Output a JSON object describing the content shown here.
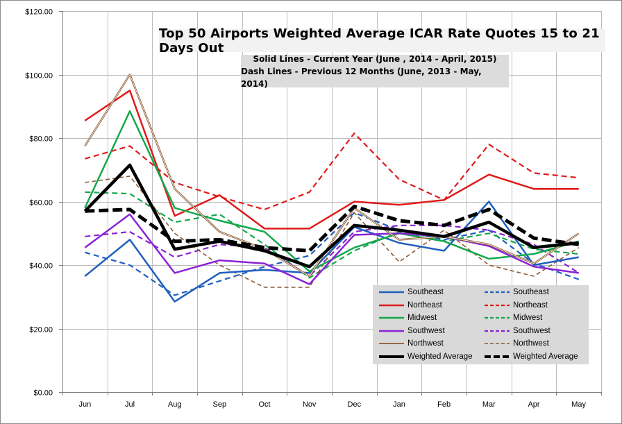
{
  "chart_data": {
    "type": "line",
    "title": "Top 50 Airports  Weighted Average  ICAR Rate Quotes  15 to 21 Days Out",
    "subtitle_lines": [
      "Solid Lines - Current Year (June , 2014  - April, 2015)",
      "Dash Lines - Previous 12 Months (June, 2013  - May, 2014)"
    ],
    "categories": [
      "Jun",
      "Jul",
      "Aug",
      "Sep",
      "Oct",
      "Nov",
      "Dec",
      "Jan",
      "Feb",
      "Mar",
      "Apr",
      "May"
    ],
    "y_ticks": [
      "$0.00",
      "$20.00",
      "$40.00",
      "$60.00",
      "$80.00",
      "$100.00",
      "$120.00"
    ],
    "ylim": [
      0,
      120
    ],
    "y_major_unit": 20,
    "grid": "horizontal major gridlines and vertical category gridlines",
    "legend_position": "bottom-right",
    "series": [
      {
        "name": "Southeast",
        "style": "solid",
        "color": "#1f5fbf",
        "values": [
          36.5,
          48,
          28.5,
          37.5,
          38.5,
          37.5,
          52,
          47,
          44.5,
          60,
          40,
          42.5
        ]
      },
      {
        "name": "Southeast",
        "style": "dashed",
        "color": "#1f5fbf",
        "values": [
          44,
          40,
          30.5,
          35,
          39.5,
          43,
          56.5,
          51,
          48,
          51,
          40.5,
          35.5
        ]
      },
      {
        "name": "Northeast",
        "style": "solid",
        "color": "#e01a1a",
        "values": [
          85.5,
          95,
          55.5,
          62,
          51.5,
          51.5,
          60,
          59,
          60.5,
          68.5,
          64,
          64
        ]
      },
      {
        "name": "Northeast",
        "style": "dashed",
        "color": "#e01a1a",
        "values": [
          73.5,
          77.5,
          66,
          61.5,
          57.5,
          63,
          81.5,
          67,
          60.5,
          78,
          69,
          67.5
        ]
      },
      {
        "name": "Midwest",
        "style": "solid",
        "color": "#13a84a",
        "values": [
          58,
          88.5,
          58,
          54,
          50.5,
          38,
          45.5,
          50,
          47.5,
          42,
          43.5,
          47.5
        ]
      },
      {
        "name": "Midwest",
        "style": "dashed",
        "color": "#13a84a",
        "values": [
          63,
          62.5,
          53.5,
          56,
          46.5,
          36,
          44.5,
          50.5,
          47.5,
          50,
          45,
          43.5
        ]
      },
      {
        "name": "Southwest",
        "style": "solid",
        "color": "#8b22d6",
        "values": [
          45.5,
          56,
          37.5,
          41.5,
          40.5,
          34,
          49.5,
          50,
          49,
          46,
          39.5,
          37.5
        ]
      },
      {
        "name": "Southwest",
        "style": "dashed",
        "color": "#8b22d6",
        "values": [
          49,
          50.5,
          42.5,
          46.5,
          45.5,
          36.5,
          50.5,
          52.5,
          52.5,
          51,
          46.5,
          37.5
        ]
      },
      {
        "name": "Northwest",
        "style": "solid",
        "color": "#8b5a33",
        "values": [
          77.5,
          100,
          64,
          50.5,
          45,
          36.5,
          58,
          48,
          49,
          46.5,
          40.5,
          50
        ]
      },
      {
        "name": "Northwest",
        "style": "dashed",
        "color": "#8b5a33",
        "values": [
          66,
          68,
          50,
          40,
          33,
          33,
          56.5,
          41,
          51,
          40,
          36.5,
          45.5
        ]
      },
      {
        "name": "Weighted Average",
        "style": "solid",
        "color": "#000000",
        "values": [
          57,
          71.5,
          45,
          47.5,
          44.5,
          39.5,
          52.5,
          51,
          49,
          53.5,
          45.5,
          47
        ]
      },
      {
        "name": "Weighted Average",
        "style": "dashed",
        "color": "#000000",
        "values": [
          57,
          57.5,
          47.5,
          48,
          45.5,
          44.5,
          58.5,
          54,
          52.5,
          57.5,
          48.5,
          46.5
        ]
      }
    ]
  }
}
